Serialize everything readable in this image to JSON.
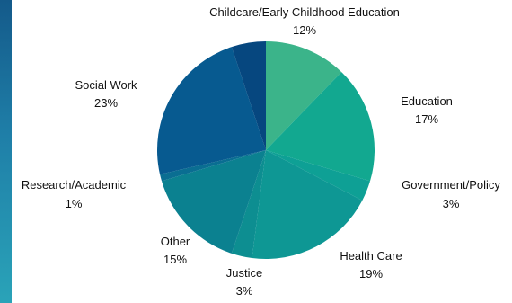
{
  "chart_data": {
    "type": "pie",
    "title": "",
    "slices": [
      {
        "label": "Childcare/Early Childhood Education",
        "value": 12,
        "value_label": "12%",
        "color": "#3bb48a"
      },
      {
        "label": "Education",
        "value": 17,
        "value_label": "17%",
        "color": "#12a890"
      },
      {
        "label": "Government/Policy",
        "value": 3,
        "value_label": "3%",
        "color": "#0ea095"
      },
      {
        "label": "Health Care",
        "value": 19,
        "value_label": "19%",
        "color": "#0e9794"
      },
      {
        "label": "Justice",
        "value": 3,
        "value_label": "3%",
        "color": "#0d8e91"
      },
      {
        "label": "Other",
        "value": 15,
        "value_label": "15%",
        "color": "#0b8190"
      },
      {
        "label": "Research/Academic",
        "value": 1,
        "value_label": "1%",
        "color": "#0a6e92"
      },
      {
        "label": "Social Work",
        "value": 23,
        "value_label": "23%",
        "color": "#075a90"
      },
      {
        "label": "",
        "value": 5,
        "value_label": "",
        "color": "#06477f"
      }
    ],
    "start_angle_deg": 0,
    "direction": "clockwise",
    "legend": "none"
  }
}
